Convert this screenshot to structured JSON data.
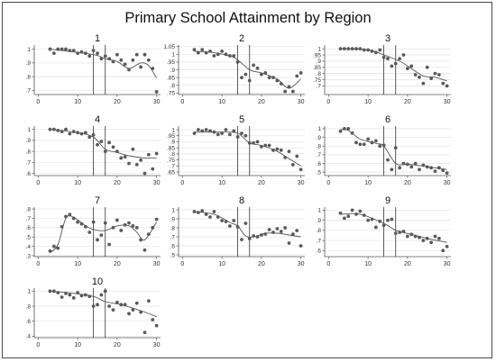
{
  "chart_data": {
    "title": "Primary School Attainment by Region",
    "type": "scatter",
    "x_ticks": [
      0,
      10,
      20,
      30
    ],
    "xlim": [
      -1,
      31
    ],
    "vertical_reference_lines": [
      14,
      17
    ],
    "panels": [
      {
        "label": "1",
        "ylim": [
          0.67,
          1.03
        ],
        "y_ticks": [
          0.7,
          0.8,
          0.9,
          1.0
        ],
        "y_tick_labels": [
          ".7",
          ".8",
          ".9",
          "1"
        ],
        "x": [
          3,
          4,
          5,
          6,
          7,
          8,
          9,
          10,
          11,
          12,
          13,
          14,
          15,
          16,
          17,
          18,
          19,
          20,
          21,
          22,
          23,
          24,
          25,
          26,
          27,
          28,
          29,
          30
        ],
        "y": [
          1.0,
          0.97,
          1.0,
          1.0,
          1.0,
          0.99,
          0.99,
          0.97,
          0.98,
          0.97,
          0.95,
          0.99,
          0.97,
          0.93,
          0.95,
          0.93,
          0.91,
          0.96,
          0.92,
          0.89,
          0.85,
          0.92,
          0.96,
          0.87,
          0.96,
          0.92,
          0.86,
          0.69
        ],
        "fit_x": [
          3,
          14,
          17,
          20,
          23,
          26,
          28,
          30
        ],
        "fit_y": [
          1.0,
          0.96,
          0.93,
          0.91,
          0.86,
          0.9,
          0.88,
          0.79
        ]
      },
      {
        "label": "2",
        "ylim": [
          0.74,
          1.06
        ],
        "y_ticks": [
          0.75,
          0.8,
          0.85,
          0.9,
          0.95,
          1.0,
          1.05
        ],
        "y_tick_labels": [
          ".75",
          ".8",
          ".85",
          ".9",
          ".95",
          "1",
          "1.05"
        ],
        "x": [
          3,
          4,
          5,
          6,
          7,
          8,
          9,
          10,
          11,
          12,
          13,
          14,
          15,
          16,
          17,
          18,
          19,
          20,
          21,
          22,
          23,
          24,
          25,
          26,
          27,
          28,
          29,
          30
        ],
        "y": [
          1.03,
          1.01,
          1.03,
          1.01,
          1.02,
          0.99,
          1.0,
          1.02,
          1.0,
          0.99,
          0.99,
          0.95,
          0.85,
          0.87,
          0.83,
          0.93,
          0.91,
          0.87,
          0.88,
          0.85,
          0.85,
          0.83,
          0.81,
          0.76,
          0.79,
          0.76,
          0.86,
          0.88
        ],
        "fit_x": [
          3,
          8,
          13,
          17,
          20,
          24,
          27,
          30
        ],
        "fit_y": [
          1.02,
          1.01,
          0.98,
          0.9,
          0.88,
          0.84,
          0.78,
          0.84
        ]
      },
      {
        "label": "3",
        "ylim": [
          0.63,
          1.03
        ],
        "y_ticks": [
          0.7,
          0.75,
          0.8,
          0.85,
          0.9,
          0.95,
          1.0
        ],
        "y_tick_labels": [
          ".7",
          ".75",
          ".8",
          ".85",
          ".9",
          ".95",
          "1"
        ],
        "x": [
          3,
          4,
          5,
          6,
          7,
          8,
          9,
          10,
          11,
          12,
          13,
          14,
          15,
          16,
          17,
          18,
          19,
          20,
          21,
          22,
          23,
          24,
          25,
          26,
          27,
          28,
          29,
          30
        ],
        "y": [
          1.0,
          1.0,
          1.0,
          1.0,
          1.0,
          1.0,
          0.99,
          0.99,
          0.98,
          0.97,
          0.99,
          0.93,
          0.92,
          0.86,
          0.88,
          0.92,
          0.95,
          0.84,
          0.86,
          0.79,
          0.77,
          0.72,
          0.85,
          0.76,
          0.8,
          0.79,
          0.72,
          0.7
        ],
        "fit_x": [
          3,
          10,
          14,
          18,
          21,
          24,
          27,
          30
        ],
        "fit_y": [
          1.0,
          0.99,
          0.95,
          0.9,
          0.84,
          0.78,
          0.77,
          0.74
        ]
      },
      {
        "label": "4",
        "ylim": [
          0.58,
          1.03
        ],
        "y_ticks": [
          0.6,
          0.7,
          0.8,
          0.9,
          1.0
        ],
        "y_tick_labels": [
          ".6",
          ".7",
          ".8",
          ".9",
          "1"
        ],
        "x": [
          3,
          4,
          5,
          6,
          7,
          8,
          9,
          10,
          11,
          12,
          13,
          14,
          15,
          16,
          17,
          18,
          19,
          20,
          21,
          22,
          23,
          24,
          25,
          26,
          27,
          28,
          29,
          30
        ],
        "y": [
          1.0,
          1.0,
          0.99,
          0.98,
          1.0,
          0.96,
          0.98,
          0.97,
          0.96,
          0.97,
          0.93,
          0.95,
          0.86,
          0.89,
          0.8,
          0.88,
          0.84,
          0.8,
          0.74,
          0.75,
          0.69,
          0.82,
          0.68,
          0.72,
          0.6,
          0.77,
          0.64,
          0.78
        ],
        "fit_x": [
          3,
          10,
          14,
          17,
          20,
          23,
          27,
          30
        ],
        "fit_y": [
          1.0,
          0.97,
          0.93,
          0.82,
          0.79,
          0.76,
          0.74,
          0.74
        ]
      },
      {
        "label": "5",
        "ylim": [
          0.62,
          1.03
        ],
        "y_ticks": [
          0.65,
          0.7,
          0.75,
          0.8,
          0.85,
          0.9,
          0.95,
          1.0
        ],
        "y_tick_labels": [
          ".65",
          ".7",
          ".75",
          ".8",
          ".85",
          ".9",
          ".95",
          "1"
        ],
        "x": [
          3,
          4,
          5,
          6,
          7,
          8,
          9,
          10,
          11,
          12,
          13,
          14,
          15,
          16,
          17,
          18,
          19,
          20,
          21,
          22,
          23,
          24,
          25,
          26,
          27,
          28,
          29,
          30
        ],
        "y": [
          0.97,
          1.0,
          0.99,
          1.0,
          0.99,
          0.98,
          0.96,
          0.97,
          1.0,
          0.96,
          0.99,
          0.94,
          0.97,
          0.95,
          0.89,
          0.89,
          0.9,
          0.86,
          0.87,
          0.87,
          0.83,
          0.84,
          0.83,
          0.77,
          0.82,
          0.71,
          0.78,
          0.67
        ],
        "fit_x": [
          3,
          10,
          14,
          17,
          20,
          24,
          27,
          30
        ],
        "fit_y": [
          0.98,
          0.98,
          0.97,
          0.89,
          0.87,
          0.82,
          0.76,
          0.7
        ]
      },
      {
        "label": "6",
        "ylim": [
          0.46,
          1.03
        ],
        "y_ticks": [
          0.5,
          0.6,
          0.7,
          0.8,
          0.9,
          1.0
        ],
        "y_tick_labels": [
          ".5",
          ".6",
          ".7",
          ".8",
          ".9",
          "1"
        ],
        "x": [
          3,
          4,
          5,
          6,
          7,
          8,
          9,
          10,
          11,
          12,
          13,
          14,
          15,
          16,
          17,
          18,
          19,
          20,
          21,
          22,
          23,
          24,
          25,
          26,
          27,
          28,
          29,
          30
        ],
        "y": [
          0.97,
          1.0,
          1.0,
          0.95,
          0.84,
          0.82,
          0.82,
          0.88,
          0.84,
          0.86,
          0.8,
          0.81,
          0.64,
          0.53,
          0.78,
          0.55,
          0.6,
          0.59,
          0.56,
          0.6,
          0.53,
          0.58,
          0.56,
          0.55,
          0.51,
          0.55,
          0.52,
          0.49
        ],
        "fit_x": [
          3,
          5,
          8,
          12,
          14,
          17,
          20,
          24,
          27,
          30
        ],
        "fit_y": [
          0.99,
          0.98,
          0.88,
          0.83,
          0.8,
          0.6,
          0.59,
          0.57,
          0.55,
          0.53
        ]
      },
      {
        "label": "7",
        "ylim": [
          0.29,
          0.82
        ],
        "y_ticks": [
          0.3,
          0.4,
          0.5,
          0.6,
          0.7,
          0.8
        ],
        "y_tick_labels": [
          ".3",
          ".4",
          ".5",
          ".6",
          ".7",
          ".8"
        ],
        "x": [
          3,
          4,
          5,
          6,
          7,
          8,
          9,
          10,
          11,
          12,
          13,
          14,
          15,
          16,
          17,
          18,
          19,
          20,
          21,
          22,
          23,
          24,
          25,
          26,
          27,
          28,
          29,
          30
        ],
        "y": [
          0.35,
          0.4,
          0.38,
          0.61,
          0.72,
          0.74,
          0.7,
          0.66,
          0.64,
          0.61,
          0.55,
          0.66,
          0.47,
          0.52,
          0.65,
          0.42,
          0.6,
          0.68,
          0.57,
          0.63,
          0.65,
          0.62,
          0.6,
          0.47,
          0.36,
          0.53,
          0.6,
          0.69
        ],
        "fit_x": [
          3,
          5,
          7,
          9,
          12,
          14,
          17,
          20,
          23,
          25,
          27,
          30
        ],
        "fit_y": [
          0.33,
          0.42,
          0.7,
          0.71,
          0.62,
          0.58,
          0.57,
          0.62,
          0.62,
          0.55,
          0.47,
          0.66
        ]
      },
      {
        "label": "8",
        "ylim": [
          0.48,
          1.03
        ],
        "y_ticks": [
          0.5,
          0.6,
          0.7,
          0.8,
          0.9,
          1.0
        ],
        "y_tick_labels": [
          ".5",
          ".6",
          ".7",
          ".8",
          ".9",
          "1"
        ],
        "x": [
          3,
          4,
          5,
          6,
          7,
          8,
          9,
          10,
          11,
          12,
          13,
          14,
          15,
          16,
          17,
          18,
          19,
          20,
          21,
          22,
          23,
          24,
          25,
          26,
          27,
          28,
          29,
          30
        ],
        "y": [
          0.98,
          0.97,
          0.99,
          0.95,
          0.92,
          0.98,
          0.92,
          0.88,
          0.87,
          0.82,
          0.88,
          0.81,
          0.67,
          0.85,
          0.68,
          0.71,
          0.7,
          0.72,
          0.73,
          0.78,
          0.75,
          0.79,
          0.76,
          0.8,
          0.63,
          0.73,
          0.77,
          0.6
        ],
        "fit_x": [
          3,
          8,
          12,
          14,
          16,
          18,
          21,
          24,
          27,
          30
        ],
        "fit_y": [
          0.98,
          0.95,
          0.86,
          0.82,
          0.71,
          0.7,
          0.74,
          0.74,
          0.72,
          0.7
        ]
      },
      {
        "label": "9",
        "ylim": [
          0.54,
          1.03
        ],
        "y_ticks": [
          0.6,
          0.7,
          0.8,
          0.9,
          1.0
        ],
        "y_tick_labels": [
          ".6",
          ".7",
          ".8",
          ".9",
          "1"
        ],
        "x": [
          3,
          4,
          5,
          6,
          7,
          8,
          9,
          10,
          11,
          12,
          13,
          14,
          15,
          16,
          17,
          18,
          19,
          20,
          21,
          22,
          23,
          24,
          25,
          26,
          27,
          28,
          29,
          30
        ],
        "y": [
          0.97,
          0.92,
          0.94,
          1.0,
          0.96,
          0.99,
          0.95,
          0.9,
          0.91,
          0.83,
          0.89,
          0.85,
          0.9,
          0.91,
          0.77,
          0.78,
          0.79,
          0.74,
          0.76,
          0.74,
          0.73,
          0.7,
          0.72,
          0.68,
          0.74,
          0.72,
          0.6,
          0.64
        ],
        "fit_x": [
          3,
          8,
          14,
          17,
          21,
          25,
          30
        ],
        "fit_y": [
          0.96,
          0.96,
          0.87,
          0.8,
          0.76,
          0.72,
          0.68
        ]
      },
      {
        "label": "10",
        "ylim": [
          0.38,
          1.04
        ],
        "y_ticks": [
          0.4,
          0.6,
          0.8,
          1.0
        ],
        "y_tick_labels": [
          ".4",
          ".6",
          ".8",
          "1"
        ],
        "x": [
          3,
          4,
          5,
          6,
          7,
          8,
          9,
          10,
          11,
          12,
          13,
          14,
          15,
          16,
          17,
          18,
          19,
          20,
          21,
          22,
          23,
          24,
          25,
          26,
          27,
          28,
          29,
          30
        ],
        "y": [
          1.0,
          1.0,
          0.98,
          0.92,
          0.97,
          0.95,
          0.91,
          0.98,
          0.94,
          0.95,
          0.93,
          0.8,
          0.82,
          0.95,
          1.0,
          0.8,
          0.75,
          0.85,
          0.82,
          0.82,
          0.7,
          0.75,
          0.84,
          0.72,
          0.45,
          0.87,
          0.62,
          0.54
        ],
        "fit_x": [
          3,
          9,
          14,
          17,
          21,
          26,
          30
        ],
        "fit_y": [
          1.0,
          0.97,
          0.93,
          0.86,
          0.82,
          0.74,
          0.66
        ]
      }
    ]
  }
}
